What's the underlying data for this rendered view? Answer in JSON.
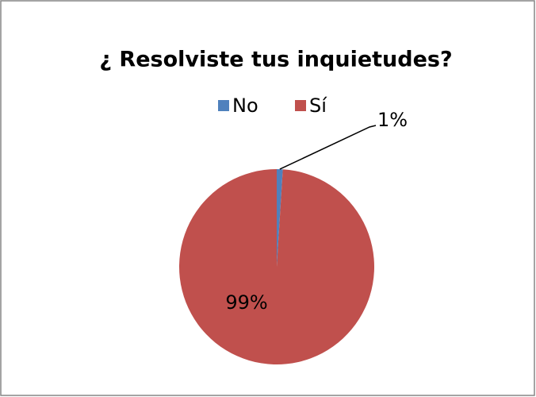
{
  "chart_data": {
    "type": "pie",
    "title": "¿ Resolviste tus inquietudes?",
    "categories": [
      "No",
      "Sí"
    ],
    "values": [
      1,
      99
    ],
    "value_labels": [
      "1%",
      "99%"
    ],
    "colors": [
      "#4f81bd",
      "#c0504d"
    ],
    "legend": "top"
  }
}
